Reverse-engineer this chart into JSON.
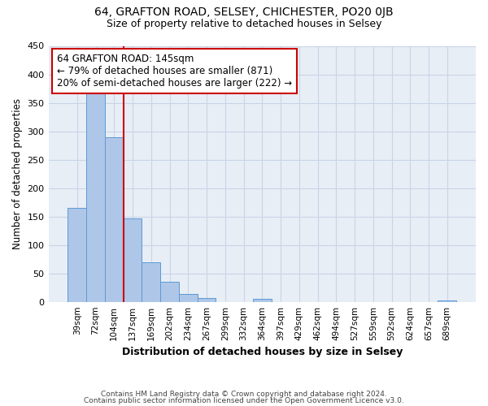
{
  "title_line1": "64, GRAFTON ROAD, SELSEY, CHICHESTER, PO20 0JB",
  "title_line2": "Size of property relative to detached houses in Selsey",
  "bar_labels": [
    "39sqm",
    "72sqm",
    "104sqm",
    "137sqm",
    "169sqm",
    "202sqm",
    "234sqm",
    "267sqm",
    "299sqm",
    "332sqm",
    "364sqm",
    "397sqm",
    "429sqm",
    "462sqm",
    "494sqm",
    "527sqm",
    "559sqm",
    "592sqm",
    "624sqm",
    "657sqm",
    "689sqm"
  ],
  "bar_values": [
    165,
    375,
    290,
    147,
    70,
    35,
    14,
    7,
    0,
    0,
    5,
    0,
    0,
    0,
    0,
    0,
    0,
    0,
    0,
    0,
    3
  ],
  "bar_color": "#aec6e8",
  "bar_edge_color": "#5b9bd5",
  "vline_color": "#cc0000",
  "vline_bar_index": 3,
  "annotation_text": "64 GRAFTON ROAD: 145sqm\n← 79% of detached houses are smaller (871)\n20% of semi-detached houses are larger (222) →",
  "annotation_box_color": "#cc0000",
  "xlabel": "Distribution of detached houses by size in Selsey",
  "ylabel": "Number of detached properties",
  "ylim": [
    0,
    450
  ],
  "yticks": [
    0,
    50,
    100,
    150,
    200,
    250,
    300,
    350,
    400,
    450
  ],
  "footer_line1": "Contains HM Land Registry data © Crown copyright and database right 2024.",
  "footer_line2": "Contains public sector information licensed under the Open Government Licence v3.0.",
  "bg_color": "#ffffff",
  "plot_bg_color": "#e8eef5",
  "grid_color": "#c8d4e8",
  "title_fontsize": 10,
  "subtitle_fontsize": 9,
  "annotation_fontsize": 8.5
}
